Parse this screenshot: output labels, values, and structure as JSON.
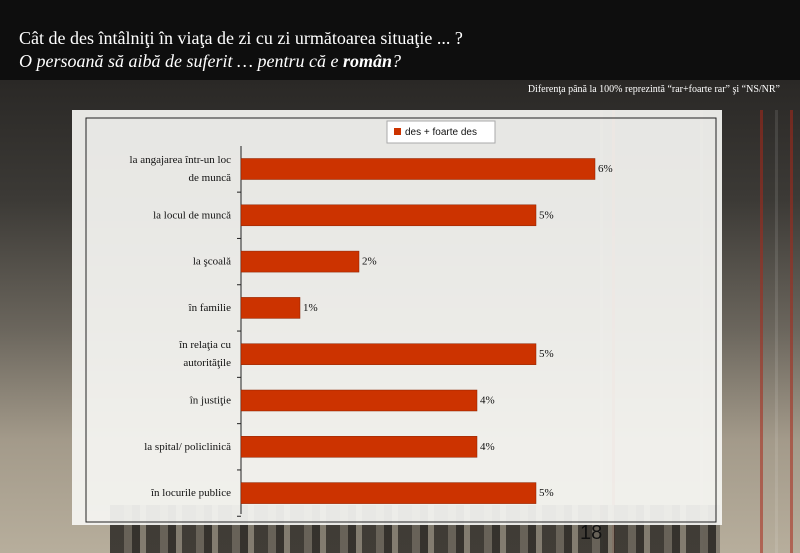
{
  "header": {
    "question": "Cât de des întâlniţi în viaţa de zi cu zi următoarea situaţie ... ?",
    "subtitle_prefix": "O persoană să aibă de suferit … pentru că e ",
    "subtitle_bold": "român",
    "subtitle_suffix": "?"
  },
  "note": "Diferenţa până la 100% reprezintă  “rar+foarte rar” şi “NS/NR”",
  "page_number": "18",
  "colors": {
    "bar": "#cc3300",
    "title_bg": "#0e0e0e"
  },
  "chart_data": {
    "type": "bar",
    "orientation": "horizontal",
    "categories": [
      "la angajarea într-un loc de muncă",
      "la locul de muncă",
      "la şcoală",
      "în familie",
      "în relaţia cu autorităţile",
      "în justiţie",
      "la spital/ policlinică",
      "în locurile publice"
    ],
    "series": [
      {
        "name": "des + foarte des",
        "values": [
          6,
          5,
          2,
          1,
          5,
          4,
          4,
          5
        ]
      }
    ],
    "value_suffix": "%",
    "xlim": [
      0,
      6
    ],
    "legend_position": "top"
  }
}
